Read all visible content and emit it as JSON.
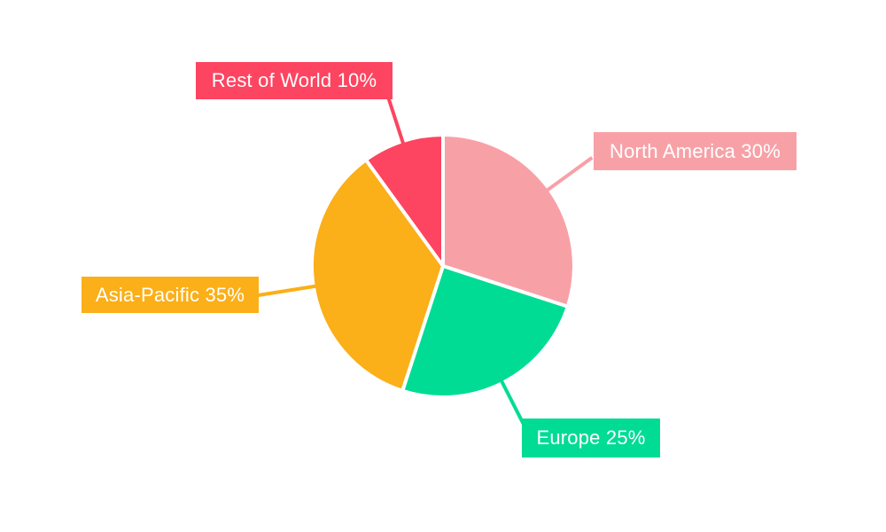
{
  "chart_data": {
    "type": "pie",
    "title": "",
    "categories": [
      "North America",
      "Europe",
      "Asia-Pacific",
      "Rest of World"
    ],
    "values": [
      30,
      25,
      35,
      10
    ],
    "unit": "%",
    "slices": [
      {
        "label": "North America",
        "value": 30,
        "display": "North America 30%",
        "color": "#F7A1A7"
      },
      {
        "label": "Europe",
        "value": 25,
        "display": "Europe 25%",
        "color": "#00DC94"
      },
      {
        "label": "Asia-Pacific",
        "value": 35,
        "display": "Asia-Pacific 35%",
        "color": "#FBAF18"
      },
      {
        "label": "Rest of World",
        "value": 10,
        "display": "Rest of World 10%",
        "color": "#FD4460"
      }
    ],
    "start_angle_deg": 0,
    "direction": "clockwise",
    "legend_position": "none",
    "background": "#FFFFFF",
    "slice_separator_color": "#FFFFFF",
    "label_text_color": "#FFFFFF",
    "grid": "off"
  }
}
